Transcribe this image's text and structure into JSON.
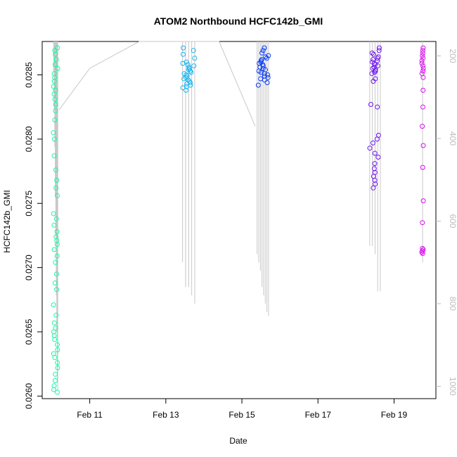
{
  "chart_data": {
    "type": "scatter",
    "title": "ATOM2 Northbound HCFC142b_GMI",
    "xlabel": "Date",
    "ylabel": "HCFC142b_GMI",
    "x_tick_labels": [
      "Feb 11",
      "Feb 13",
      "Feb 15",
      "Feb 17",
      "Feb 19"
    ],
    "x_tick_days": [
      11,
      13,
      15,
      17,
      19
    ],
    "xlim_days": [
      9.75,
      20.1
    ],
    "ylim": [
      0.02598,
      0.02876
    ],
    "y_ticks": [
      0.026,
      0.0265,
      0.027,
      0.0275,
      0.028,
      0.0285
    ],
    "y_tick_labels": [
      "0.0260",
      "0.0265",
      "0.0270",
      "0.0275",
      "0.0280",
      "0.0285"
    ],
    "y2_ticks": [
      200,
      400,
      600,
      800,
      1000
    ],
    "y2_tick_labels": [
      "200",
      "400",
      "600",
      "800",
      "1000"
    ],
    "y2lim": [
      1030,
      165
    ],
    "grid": false,
    "legend": "none",
    "axis_color_right": "#bdbdbd",
    "profile_line_color": "#c8c8c8",
    "series": [
      {
        "color": "#1cf5a6",
        "x": 10.1,
        "x_spread": 0.12,
        "values": [
          0.02871,
          0.02869,
          0.02866,
          0.02862,
          0.02858,
          0.02855,
          0.02851,
          0.02848,
          0.02845,
          0.02841,
          0.02838,
          0.02835,
          0.02831,
          0.02827,
          0.02822,
          0.02815,
          0.02805,
          0.028,
          0.02787,
          0.02776,
          0.02768,
          0.02762,
          0.02756,
          0.02742,
          0.02738,
          0.02733,
          0.02728,
          0.02724,
          0.02721,
          0.02718,
          0.02714,
          0.02709,
          0.02704,
          0.02695,
          0.02688,
          0.02683,
          0.02671,
          0.02663,
          0.02657,
          0.02653,
          0.0265,
          0.02647,
          0.02644,
          0.0264,
          0.02636,
          0.02633,
          0.0263,
          0.02626,
          0.02622,
          0.02617,
          0.02612,
          0.02608,
          0.02605,
          0.02603
        ],
        "profile_pressures": [
          170,
          240,
          330,
          420,
          540,
          640,
          780,
          870,
          990,
          1010
        ]
      },
      {
        "color": "#16b4ef",
        "x": 13.6,
        "x_spread": 0.32,
        "values": [
          0.02871,
          0.02869,
          0.02866,
          0.02863,
          0.0286,
          0.02859,
          0.02858,
          0.02857,
          0.02856,
          0.02855,
          0.02854,
          0.02853,
          0.02852,
          0.02851,
          0.0285,
          0.02849,
          0.02848,
          0.02847,
          0.02846,
          0.02845,
          0.02844,
          0.02843,
          0.02842,
          0.02841,
          0.0284,
          0.02838
        ],
        "profile_pressures": [
          700,
          760,
          760,
          780,
          800
        ]
      },
      {
        "color": "#0b3df5",
        "x": 15.55,
        "x_spread": 0.3,
        "values": [
          0.02871,
          0.02869,
          0.02867,
          0.02865,
          0.02864,
          0.02863,
          0.02862,
          0.02861,
          0.0286,
          0.02859,
          0.02858,
          0.02857,
          0.02856,
          0.02855,
          0.02854,
          0.02853,
          0.02852,
          0.02851,
          0.0285,
          0.02849,
          0.02848,
          0.02847,
          0.02846,
          0.02844,
          0.02842
        ],
        "profile_pressures": [
          680,
          700,
          720,
          760,
          780,
          800,
          820,
          830
        ]
      },
      {
        "color": "#6f15f2",
        "x": 18.5,
        "x_spread": 0.28,
        "values": [
          0.02871,
          0.02869,
          0.02867,
          0.02866,
          0.02864,
          0.02863,
          0.02862,
          0.02861,
          0.0286,
          0.02859,
          0.02858,
          0.02857,
          0.02856,
          0.02855,
          0.02854,
          0.02853,
          0.02852,
          0.02851,
          0.02847,
          0.02845,
          0.02827,
          0.02825,
          0.02803,
          0.028,
          0.02797,
          0.02793,
          0.02789,
          0.02786,
          0.02781,
          0.02777,
          0.02774,
          0.02771,
          0.02768,
          0.02765,
          0.02762
        ],
        "profile_pressures": [
          660,
          660,
          680,
          770,
          770
        ]
      },
      {
        "color": "#d90cf2",
        "x": 19.75,
        "x_spread": 0.04,
        "values": [
          0.02871,
          0.02869,
          0.02867,
          0.02865,
          0.02863,
          0.02861,
          0.02859,
          0.02857,
          0.02855,
          0.02853,
          0.02851,
          0.02848,
          0.02838,
          0.02825,
          0.0281,
          0.02795,
          0.02778,
          0.02752,
          0.02735,
          0.02715,
          0.02714,
          0.02713,
          0.02712,
          0.02711
        ],
        "profile_pressures": [
          700
        ]
      }
    ],
    "flight_track_days": [
      10.2,
      11.0,
      12.3,
      14.4,
      15.35
    ],
    "flight_track_pressures": [
      330,
      230,
      150,
      150,
      370
    ]
  }
}
